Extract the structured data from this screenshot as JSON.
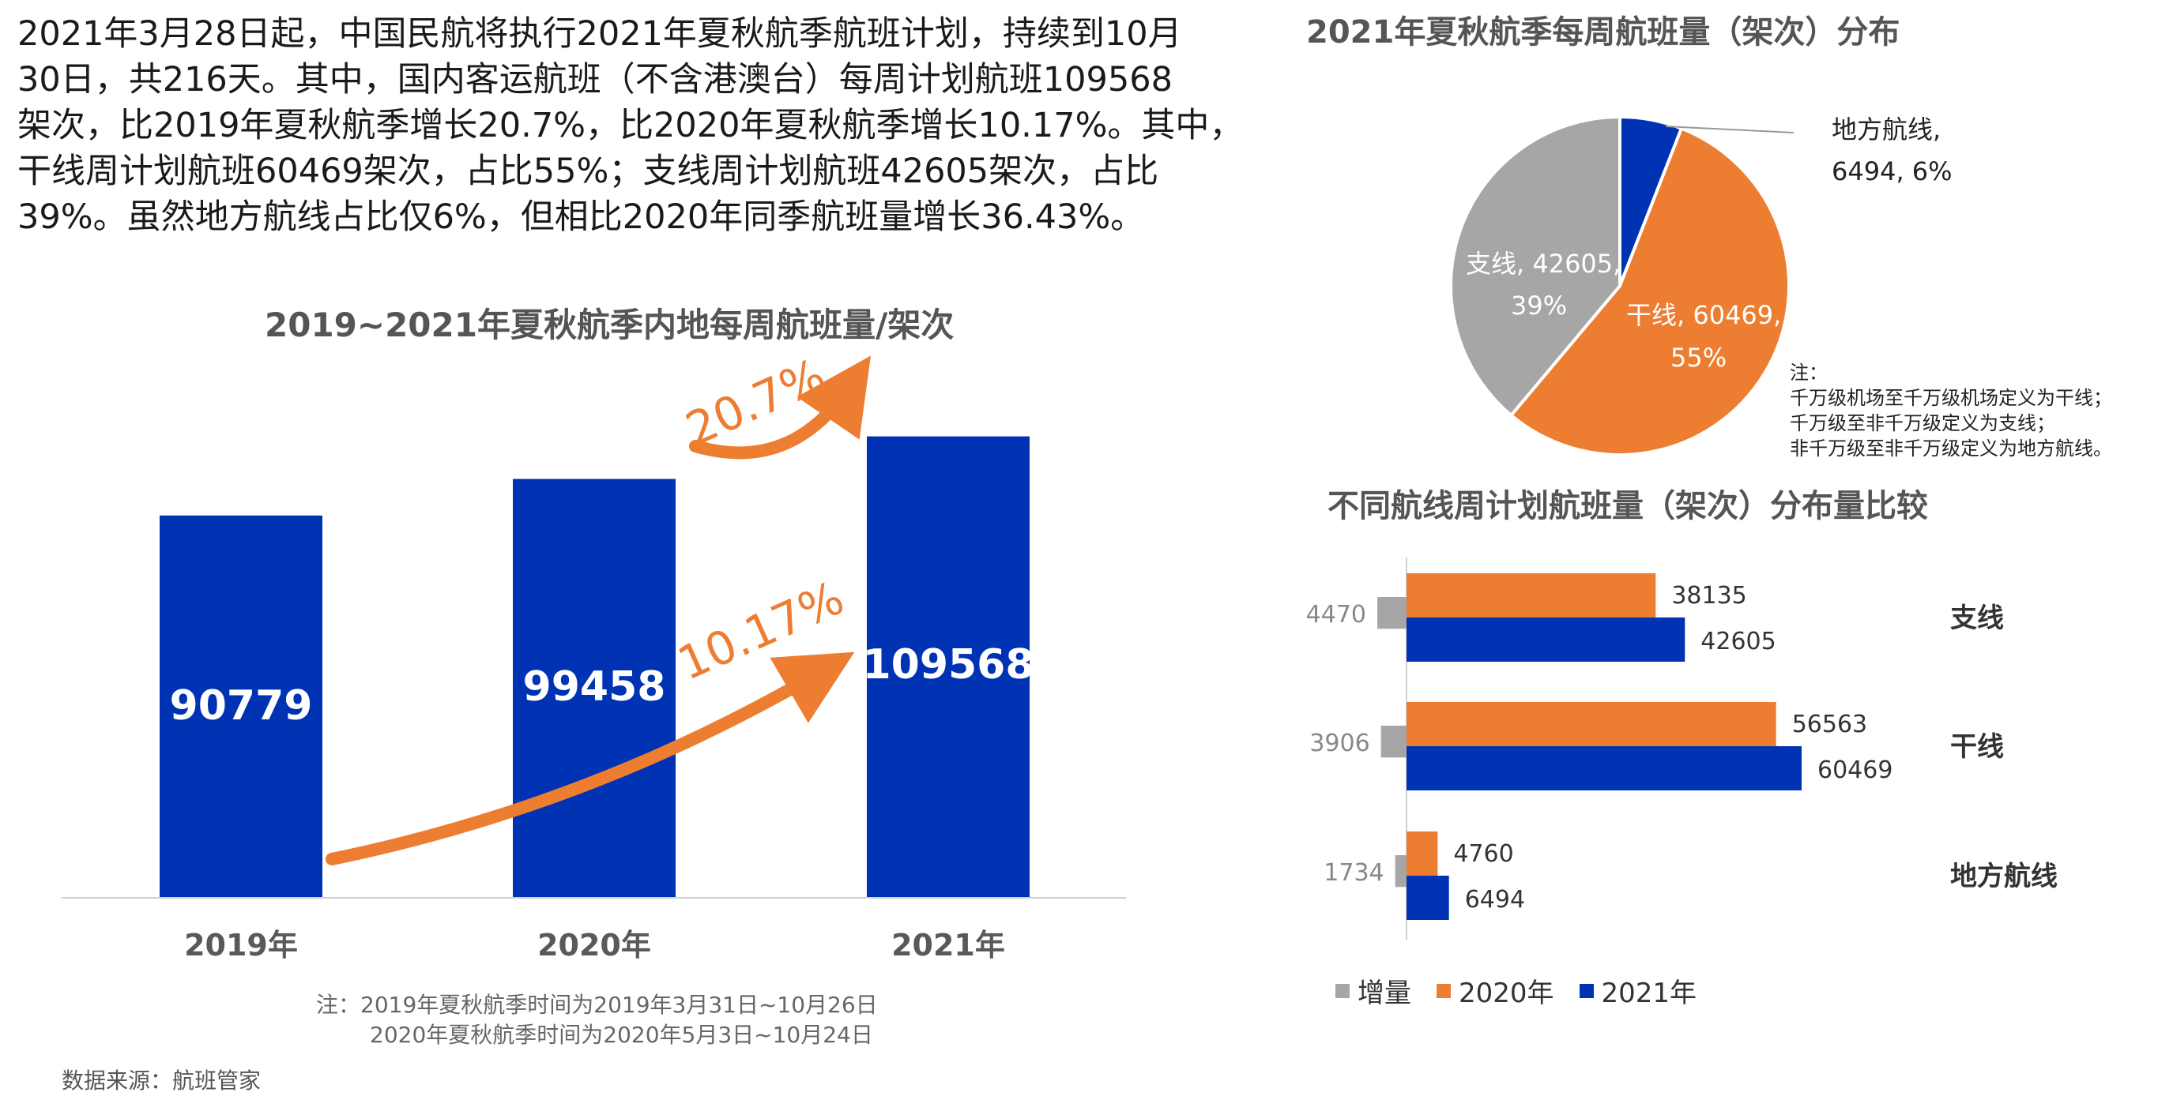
{
  "intro": {
    "lines": [
      "2021年3月28日起，中国民航将执行2021年夏秋航季航班计划，持续到10月",
      "30日，共216天。其中，国内客运航班（不含港澳台）每周计划航班109568",
      "架次，比2019年夏秋航季增长20.7%，比2020年夏秋航季增长10.17%。其中，",
      "干线周计划航班60469架次，占比55%；支线周计划航班42605架次，占比",
      "39%。虽然地方航线占比仅6%，但相比2020年同季航班量增长36.43%。"
    ]
  },
  "colors": {
    "blue": "#0033B3",
    "orange": "#ED7D31",
    "gray": "#A6A6A6",
    "title_gray": "#595959"
  },
  "chart_data": [
    {
      "type": "bar",
      "title": "2019~2021年夏秋航季内地每周航班量/架次",
      "categories": [
        "2019年",
        "2020年",
        "2021年"
      ],
      "values": [
        90779,
        99458,
        109568
      ],
      "value_labels": [
        "90779",
        "99458",
        "109568"
      ],
      "annotations": [
        "20.7%",
        "10.17%"
      ],
      "notes": [
        "注：2019年夏秋航季时间为2019年3月31日~10月26日",
        "2020年夏秋航季时间为2020年5月3日~10月24日"
      ]
    },
    {
      "type": "pie",
      "title": "2021年夏秋航季每周航班量（架次）分布",
      "slices": [
        {
          "name": "地方航线",
          "value": 6494,
          "percent": 6,
          "label_line1": "地方航线,",
          "label_line2": "6494, 6%"
        },
        {
          "name": "干线",
          "value": 60469,
          "percent": 55,
          "label_line1": "干线, 60469,",
          "label_line2": "55%"
        },
        {
          "name": "支线",
          "value": 42605,
          "percent": 39,
          "label_line1": "支线, 42605,",
          "label_line2": "39%"
        }
      ],
      "notes": [
        "注：",
        "千万级机场至千万级机场定义为干线；",
        "千万级至非千万级定义为支线；",
        "非千万级至非千万级定义为地方航线。"
      ]
    },
    {
      "type": "bar",
      "orientation": "horizontal",
      "title": "不同航线周计划航班量（架次）分布量比较",
      "categories": [
        "支线",
        "干线",
        "地方航线"
      ],
      "series": [
        {
          "name": "增量",
          "values": [
            4470,
            3906,
            1734
          ]
        },
        {
          "name": "2020年",
          "values": [
            38135,
            56563,
            4760
          ]
        },
        {
          "name": "2021年",
          "values": [
            42605,
            60469,
            6494
          ]
        }
      ]
    }
  ],
  "source": "数据来源：航班管家"
}
